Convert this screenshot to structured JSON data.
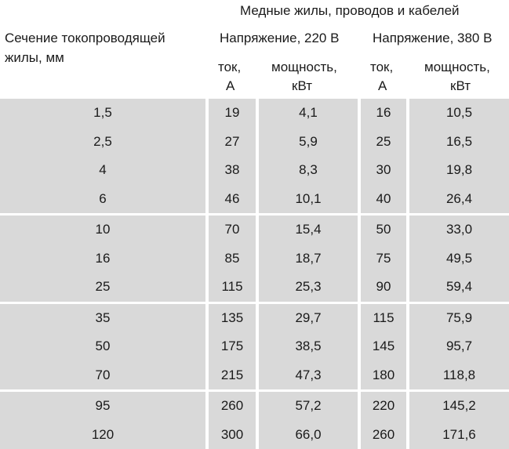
{
  "header": {
    "group_title": "Медные жилы, проводов и кабелей",
    "section_label_line1": "Сечение токопроводящей",
    "section_label_line2": "жилы, мм",
    "voltage_220": "Напряжение, 220 В",
    "voltage_380": "Напряжение, 380 В",
    "current_line1": "ток,",
    "current_line2": "А",
    "power_line1": "мощность,",
    "power_line2": "кВт"
  },
  "groups": [
    [
      [
        "1,5",
        "19",
        "4,1",
        "16",
        "10,5"
      ],
      [
        "2,5",
        "27",
        "5,9",
        "25",
        "16,5"
      ],
      [
        "4",
        "38",
        "8,3",
        "30",
        "19,8"
      ],
      [
        "6",
        "46",
        "10,1",
        "40",
        "26,4"
      ]
    ],
    [
      [
        "10",
        "70",
        "15,4",
        "50",
        "33,0"
      ],
      [
        "16",
        "85",
        "18,7",
        "75",
        "49,5"
      ],
      [
        "25",
        "115",
        "25,3",
        "90",
        "59,4"
      ]
    ],
    [
      [
        "35",
        "135",
        "29,7",
        "115",
        "75,9"
      ],
      [
        "50",
        "175",
        "38,5",
        "145",
        "95,7"
      ],
      [
        "70",
        "215",
        "47,3",
        "180",
        "118,8"
      ]
    ],
    [
      [
        "95",
        "260",
        "57,2",
        "220",
        "145,2"
      ],
      [
        "120",
        "300",
        "66,0",
        "260",
        "171,6"
      ]
    ]
  ]
}
